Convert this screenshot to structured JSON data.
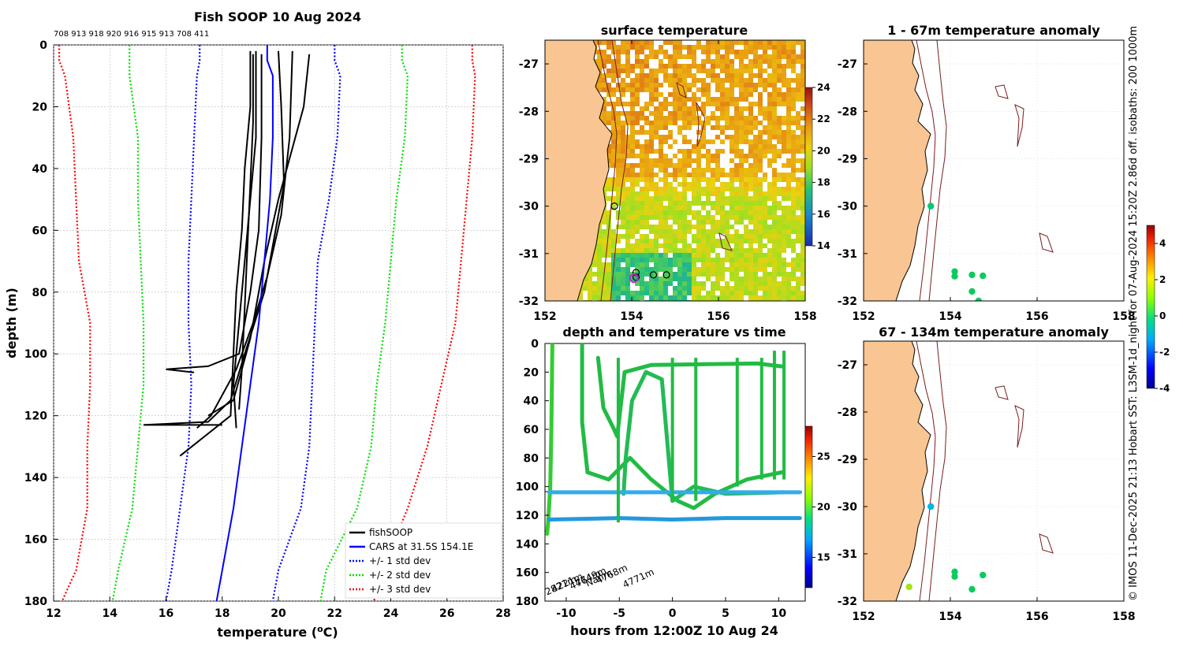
{
  "chart_data": [
    {
      "id": "profiles",
      "type": "line",
      "title": "Fish SOOP 10 Aug 2024",
      "xlabel_main": "temperature (",
      "xlabel_sup": "o",
      "xlabel_end": "C)",
      "ylabel": "depth (m)",
      "xlim": [
        12,
        28
      ],
      "ylim": [
        180,
        0
      ],
      "xticks": [
        "12",
        "14",
        "16",
        "18",
        "20",
        "22",
        "24",
        "26",
        "28"
      ],
      "yticks": [
        "0",
        "20",
        "40",
        "60",
        "80",
        "100",
        "120",
        "140",
        "160",
        "180"
      ],
      "grid": true,
      "top_annotation": "708 913 918 920 916 915 913 708 411",
      "legend": [
        {
          "label": "fishSOOP",
          "color": "#000000",
          "style": "solid"
        },
        {
          "label": "CARS at 31.5S 154.1E",
          "color": "#0000ff",
          "style": "solid"
        },
        {
          "label": "+/- 1 std dev",
          "color": "#0000ff",
          "style": "dotted"
        },
        {
          "label": "+/- 2 std dev",
          "color": "#00dd00",
          "style": "dotted"
        },
        {
          "label": "+/- 3 std dev",
          "color": "#ff0000",
          "style": "dotted"
        }
      ],
      "cars_mean": [
        [
          19.6,
          0
        ],
        [
          19.6,
          5
        ],
        [
          19.8,
          10
        ],
        [
          19.8,
          30
        ],
        [
          19.7,
          50
        ],
        [
          19.5,
          70
        ],
        [
          19.3,
          90
        ],
        [
          19.0,
          110
        ],
        [
          18.7,
          130
        ],
        [
          18.4,
          150
        ],
        [
          18.0,
          170
        ],
        [
          17.8,
          180
        ]
      ],
      "std1": {
        "left": [
          [
            17.2,
            0
          ],
          [
            17.2,
            5
          ],
          [
            17.1,
            10
          ],
          [
            17.0,
            30
          ],
          [
            16.9,
            50
          ],
          [
            16.8,
            70
          ],
          [
            16.8,
            90
          ],
          [
            16.9,
            110
          ],
          [
            16.8,
            130
          ],
          [
            16.5,
            150
          ],
          [
            16.2,
            170
          ],
          [
            16.0,
            180
          ]
        ],
        "right": [
          [
            22.0,
            0
          ],
          [
            22.0,
            5
          ],
          [
            22.2,
            10
          ],
          [
            22.1,
            30
          ],
          [
            21.8,
            50
          ],
          [
            21.4,
            70
          ],
          [
            21.3,
            90
          ],
          [
            21.2,
            110
          ],
          [
            21.1,
            130
          ],
          [
            20.8,
            150
          ],
          [
            20.0,
            170
          ],
          [
            19.8,
            180
          ]
        ]
      },
      "std2": {
        "left": [
          [
            14.7,
            0
          ],
          [
            14.7,
            5
          ],
          [
            14.7,
            10
          ],
          [
            15.0,
            30
          ],
          [
            15.0,
            50
          ],
          [
            15.1,
            70
          ],
          [
            15.2,
            90
          ],
          [
            15.2,
            110
          ],
          [
            15.0,
            130
          ],
          [
            14.8,
            150
          ],
          [
            14.3,
            170
          ],
          [
            14.1,
            180
          ]
        ],
        "right": [
          [
            24.4,
            0
          ],
          [
            24.4,
            5
          ],
          [
            24.6,
            10
          ],
          [
            24.5,
            30
          ],
          [
            24.2,
            50
          ],
          [
            24.0,
            70
          ],
          [
            23.8,
            90
          ],
          [
            23.5,
            110
          ],
          [
            23.3,
            130
          ],
          [
            22.8,
            150
          ],
          [
            21.7,
            170
          ],
          [
            21.5,
            180
          ]
        ]
      },
      "std3": {
        "left": [
          [
            12.2,
            0
          ],
          [
            12.2,
            5
          ],
          [
            12.4,
            10
          ],
          [
            12.7,
            30
          ],
          [
            12.8,
            50
          ],
          [
            12.9,
            70
          ],
          [
            13.3,
            90
          ],
          [
            13.3,
            110
          ],
          [
            13.2,
            130
          ],
          [
            13.2,
            150
          ],
          [
            12.8,
            170
          ],
          [
            12.3,
            180
          ]
        ],
        "right": [
          [
            26.9,
            0
          ],
          [
            26.9,
            5
          ],
          [
            27.0,
            10
          ],
          [
            26.9,
            30
          ],
          [
            26.7,
            50
          ],
          [
            26.5,
            70
          ],
          [
            26.3,
            90
          ],
          [
            25.8,
            110
          ],
          [
            25.3,
            130
          ],
          [
            24.6,
            150
          ],
          [
            23.7,
            170
          ],
          [
            23.4,
            180
          ]
        ]
      },
      "fishsoop": [
        [
          [
            19.0,
            2
          ],
          [
            19.0,
            20
          ],
          [
            18.8,
            40
          ],
          [
            18.7,
            60
          ],
          [
            18.5,
            80
          ],
          [
            18.4,
            100
          ],
          [
            18.3,
            120
          ],
          [
            16.5,
            133
          ]
        ],
        [
          [
            19.2,
            2
          ],
          [
            19.2,
            30
          ],
          [
            19.0,
            50
          ],
          [
            18.8,
            70
          ],
          [
            18.6,
            90
          ],
          [
            18.4,
            110
          ],
          [
            18.5,
            124
          ]
        ],
        [
          [
            19.4,
            3
          ],
          [
            19.4,
            30
          ],
          [
            19.3,
            60
          ],
          [
            19.0,
            80
          ],
          [
            18.6,
            100
          ],
          [
            17.5,
            104
          ],
          [
            16.0,
            105
          ],
          [
            17.0,
            106
          ]
        ],
        [
          [
            20.0,
            2
          ],
          [
            20.1,
            20
          ],
          [
            20.2,
            45
          ],
          [
            19.9,
            60
          ],
          [
            19.5,
            80
          ],
          [
            18.8,
            100
          ],
          [
            18.3,
            115
          ],
          [
            17.5,
            122
          ],
          [
            15.2,
            123
          ],
          [
            18.0,
            123
          ]
        ],
        [
          [
            20.5,
            2
          ],
          [
            20.4,
            30
          ],
          [
            20.1,
            55
          ],
          [
            19.6,
            75
          ],
          [
            19.1,
            90
          ],
          [
            18.5,
            105
          ],
          [
            17.6,
            120
          ],
          [
            17.1,
            124
          ]
        ],
        [
          [
            21.1,
            3
          ],
          [
            20.9,
            20
          ],
          [
            20.0,
            50
          ],
          [
            19.5,
            70
          ],
          [
            19.0,
            95
          ],
          [
            18.4,
            115
          ],
          [
            17.5,
            120
          ]
        ],
        [
          [
            19.1,
            3
          ],
          [
            19.1,
            25
          ],
          [
            19.0,
            45
          ],
          [
            18.9,
            65
          ],
          [
            18.8,
            85
          ],
          [
            18.7,
            105
          ],
          [
            18.6,
            118
          ]
        ]
      ]
    },
    {
      "id": "sst",
      "type": "heatmap",
      "title": "surface temperature",
      "xlim": [
        152,
        158
      ],
      "ylim": [
        -32,
        -26.5
      ],
      "xticks": [
        "152",
        "154",
        "156",
        "158"
      ],
      "yticks": [
        "-27",
        "-28",
        "-29",
        "-30",
        "-31",
        "-32"
      ],
      "colorbar": {
        "min": 14,
        "max": 24,
        "ticks": [
          "24",
          "22",
          "20",
          "18",
          "16",
          "14"
        ]
      },
      "stations": [
        [
          153.6,
          -30.0
        ],
        [
          154.1,
          -31.4
        ],
        [
          154.5,
          -31.45
        ],
        [
          154.8,
          -31.45
        ],
        [
          154.1,
          -31.5
        ]
      ],
      "highlight_station": [
        154.05,
        -31.52
      ]
    },
    {
      "id": "timeseries",
      "type": "line",
      "title": "depth and temperature vs time",
      "xlabel": "hours from 12:00Z 10 Aug 24",
      "xlim": [
        -12,
        12.5
      ],
      "ylim": [
        180,
        0
      ],
      "xticks": [
        "-10",
        "-5",
        "0",
        "5",
        "10"
      ],
      "yticks": [
        "0",
        "20",
        "40",
        "60",
        "80",
        "100",
        "120",
        "140",
        "160",
        "180"
      ],
      "colorbar": {
        "min": 12,
        "max": 28,
        "ticks": [
          "25",
          "20",
          "15"
        ]
      },
      "depth_labels": [
        "2821m",
        "4221m",
        "4764m",
        "4749m",
        "Nanm",
        "4768m",
        "4771m"
      ],
      "tracks": [
        {
          "color": "#33cc33",
          "points": [
            [
              -11.3,
              0
            ],
            [
              -11.4,
              60
            ],
            [
              -11.5,
              100
            ],
            [
              -11.7,
              125
            ],
            [
              -11.8,
              133
            ]
          ]
        },
        {
          "color": "#22bb44",
          "points": [
            [
              -7,
              10
            ],
            [
              -6.5,
              45
            ],
            [
              -5.5,
              60
            ],
            [
              -5.2,
              65
            ],
            [
              -4.5,
              20
            ],
            [
              -2,
              15
            ],
            [
              8,
              14
            ],
            [
              10.3,
              16
            ]
          ]
        },
        {
          "color": "#22bb44",
          "points": [
            [
              -8.5,
              0
            ],
            [
              -8.5,
              55
            ],
            [
              -8,
              90
            ],
            [
              -6,
              95
            ],
            [
              -4,
              80
            ],
            [
              -2,
              95
            ],
            [
              0.5,
              110
            ],
            [
              2,
              115
            ],
            [
              4,
              105
            ],
            [
              7,
              95
            ],
            [
              10.3,
              90
            ]
          ]
        },
        {
          "color": "#22bb55",
          "points": [
            [
              -4.6,
              105
            ],
            [
              -4.4,
              80
            ],
            [
              -3.8,
              40
            ],
            [
              -2.5,
              20
            ],
            [
              -1,
              25
            ],
            [
              0,
              110
            ],
            [
              2,
              100
            ],
            [
              5,
              105
            ],
            [
              10.5,
              104
            ]
          ]
        },
        {
          "color": "#33aaee",
          "points": [
            [
              -11.6,
              104
            ],
            [
              -5,
              104
            ],
            [
              0,
              104
            ],
            [
              5,
              104
            ],
            [
              12,
              104
            ]
          ]
        },
        {
          "color": "#2299dd",
          "points": [
            [
              -11.6,
              123
            ],
            [
              -5,
              122
            ],
            [
              0,
              123
            ],
            [
              5,
              122
            ],
            [
              12,
              122
            ]
          ]
        }
      ]
    },
    {
      "id": "anom1",
      "type": "scatter",
      "title": "1 - 67m temperature anomaly",
      "xlim": [
        152,
        158
      ],
      "ylim": [
        -32,
        -26.5
      ],
      "xticks": [
        "152",
        "154",
        "156",
        "158"
      ],
      "yticks": [
        "-27",
        "-28",
        "-29",
        "-30",
        "-31",
        "-32"
      ],
      "colorbar": {
        "min": -4,
        "max": 5,
        "ticks": [
          "4",
          "2",
          "0",
          "-2",
          "-4"
        ]
      },
      "points": [
        [
          153.55,
          -30.0,
          0.3
        ],
        [
          154.1,
          -31.38,
          0.6
        ],
        [
          154.1,
          -31.48,
          0.6
        ],
        [
          154.5,
          -31.45,
          0.6
        ],
        [
          154.75,
          -31.47,
          0.6
        ],
        [
          154.5,
          -31.8,
          0.6
        ],
        [
          154.65,
          -32.0,
          0.3
        ]
      ]
    },
    {
      "id": "anom2",
      "type": "scatter",
      "title": "67 - 134m temperature anomaly",
      "xlim": [
        152,
        158
      ],
      "ylim": [
        -32,
        -26.5
      ],
      "xticks": [
        "152",
        "154",
        "156",
        "158"
      ],
      "yticks": [
        "-27",
        "-28",
        "-29",
        "-30",
        "-31",
        "-32"
      ],
      "points": [
        [
          153.05,
          -31.7,
          1.8
        ],
        [
          153.55,
          -30.0,
          -1.2
        ],
        [
          154.1,
          -31.38,
          0.6
        ],
        [
          154.1,
          -31.48,
          0.6
        ],
        [
          154.75,
          -31.45,
          0.6
        ],
        [
          154.5,
          -31.75,
          0.6
        ]
      ]
    }
  ],
  "credit": "© IMOS 11-Dec-2025 21:13 Hobart SST: L3SM-1d_night for 07-Aug-2024 15:20Z 2.86d off. isobaths: 200  1000m"
}
